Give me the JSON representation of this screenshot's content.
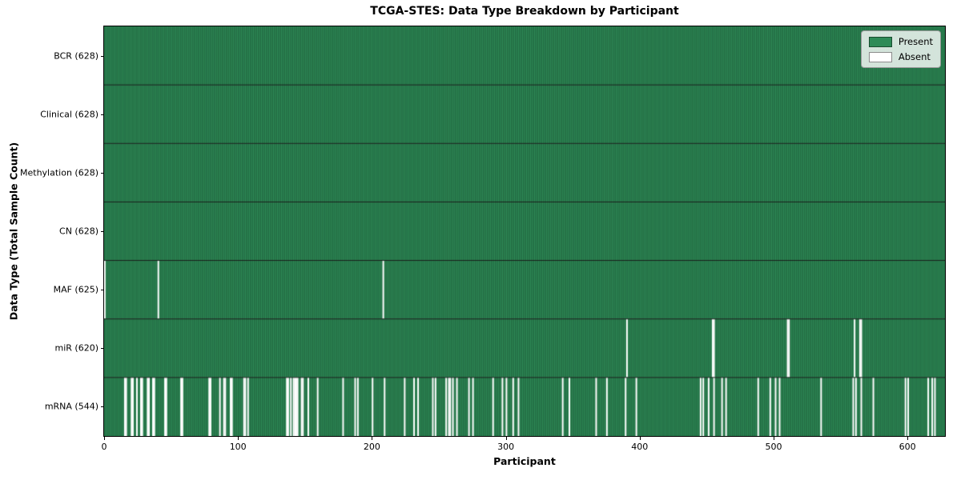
{
  "chart_data": {
    "type": "heatmap",
    "title": "TCGA-STES: Data Type Breakdown by Participant",
    "xlabel": "Participant",
    "ylabel": "Data Type (Total Sample Count)",
    "total_participants": 628,
    "xlim": [
      0,
      628
    ],
    "xticks": [
      0,
      100,
      200,
      300,
      400,
      500,
      600
    ],
    "legend_position": "upper right",
    "grid": false,
    "legend": [
      {
        "label": "Present",
        "color": "#2e8b57"
      },
      {
        "label": "Absent",
        "color": "#ffffff"
      }
    ],
    "colors": {
      "present": "#2e8b57",
      "absent": "#ffffff",
      "row_separator": "#111111",
      "plot_border": "#000000"
    },
    "rows": [
      {
        "label": "BCR (628)",
        "data_type": "BCR",
        "present_count": 628,
        "absent_count": 0,
        "absent_participants": []
      },
      {
        "label": "Clinical (628)",
        "data_type": "Clinical",
        "present_count": 628,
        "absent_count": 0,
        "absent_participants": []
      },
      {
        "label": "Methylation (628)",
        "data_type": "Methylation",
        "present_count": 628,
        "absent_count": 0,
        "absent_participants": []
      },
      {
        "label": "CN (628)",
        "data_type": "CN",
        "present_count": 628,
        "absent_count": 0,
        "absent_participants": []
      },
      {
        "label": "MAF (625)",
        "data_type": "MAF",
        "present_count": 625,
        "absent_count": 3,
        "absent_participants": [
          0,
          40,
          208
        ]
      },
      {
        "label": "miR (620)",
        "data_type": "miR",
        "present_count": 620,
        "absent_count": 8,
        "absent_participants": [
          390,
          454,
          455,
          510,
          511,
          560,
          564,
          565
        ]
      },
      {
        "label": "mRNA (544)",
        "data_type": "mRNA",
        "present_count": 544,
        "absent_count": 84,
        "absent_participants": [
          15,
          16,
          20,
          21,
          24,
          27,
          28,
          32,
          33,
          36,
          37,
          45,
          46,
          57,
          58,
          78,
          79,
          86,
          89,
          90,
          94,
          95,
          104,
          105,
          107,
          136,
          137,
          139,
          141,
          142,
          143,
          144,
          147,
          148,
          152,
          159,
          178,
          187,
          189,
          200,
          209,
          224,
          231,
          234,
          245,
          247,
          255,
          257,
          258,
          260,
          263,
          272,
          275,
          290,
          297,
          300,
          305,
          309,
          342,
          347,
          367,
          375,
          389,
          397,
          445,
          447,
          451,
          455,
          461,
          464,
          488,
          497,
          501,
          504,
          535,
          559,
          561,
          565,
          574,
          598,
          600,
          615,
          618,
          620
        ]
      }
    ]
  }
}
